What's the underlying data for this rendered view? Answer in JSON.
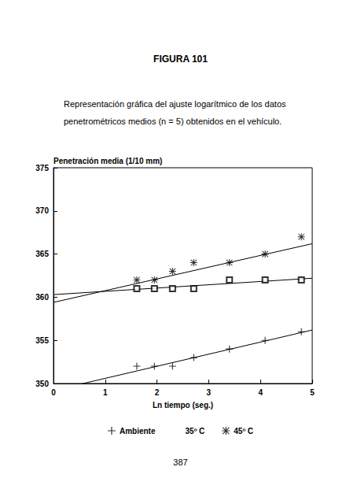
{
  "chart_data": {
    "type": "scatter",
    "title": "FIGURA 101",
    "subtitle": "Representación gráfica del ajuste logarítmico de los datos penetrométricos medios (n = 5) obtenidos en el vehículo.",
    "annotations": [
      "387"
    ],
    "x_label": "Ln tiempo (seg.)",
    "y_label": "Penetración media (1/10 mm)",
    "x": [
      1.61,
      1.95,
      2.3,
      2.71,
      3.4,
      4.09,
      4.79
    ],
    "series": [
      {
        "name": "Ambiente",
        "color": "#000000",
        "marker": "plus",
        "values": [
          352,
          352,
          352,
          353,
          354,
          355,
          356
        ],
        "fit": {
          "x": [
            0,
            5
          ],
          "values": [
            349.2,
            356.2
          ]
        }
      },
      {
        "name": "35º C",
        "color": "#000000",
        "marker": "square",
        "values": [
          361,
          361,
          361,
          361,
          362,
          362,
          362
        ],
        "fit": {
          "x": [
            0,
            5
          ],
          "values": [
            360.3,
            362.2
          ]
        }
      },
      {
        "name": "45º C",
        "color": "#000000",
        "marker": "asterisk",
        "values": [
          362,
          362,
          363,
          364,
          364,
          365,
          367
        ],
        "fit": {
          "x": [
            0,
            5
          ],
          "values": [
            359.4,
            366.2
          ]
        }
      }
    ],
    "xlim": [
      0,
      5
    ],
    "xticks": [
      0,
      1,
      2,
      3,
      4,
      5
    ],
    "ylim": [
      350,
      375
    ],
    "yticks": [
      350,
      355,
      360,
      365,
      370,
      375
    ],
    "grid": false,
    "legend": "bottom"
  }
}
